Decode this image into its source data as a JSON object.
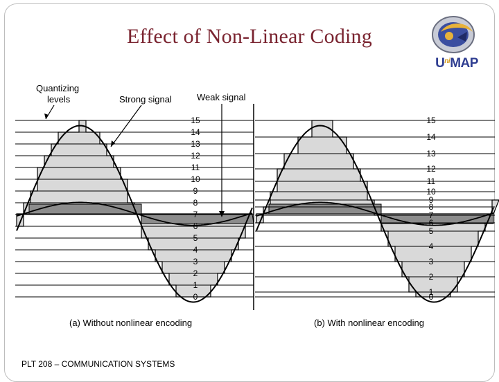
{
  "slide": {
    "title": "Effect of Non-Linear Coding",
    "footer": "PLT 208 – COMMUNICATION SYSTEMS",
    "logo": {
      "icon": "unimap-emblem-icon",
      "text_main": "U",
      "text_sup": "ni",
      "text_rest": "MAP",
      "colors": {
        "primary": "#2f3e91",
        "accent": "#d59b1c"
      }
    }
  },
  "figure": {
    "labels": {
      "quantizing_line1": "Quantizing",
      "quantizing_line2": "levels",
      "strong_signal": "Strong signal",
      "weak_signal": "Weak signal"
    },
    "panel_a": {
      "caption": "(a) Without nonlinear encoding",
      "levels": [
        "15",
        "14",
        "13",
        "12",
        "11",
        "10",
        "9",
        "8",
        "7",
        "6",
        "5",
        "4",
        "3",
        "2",
        "1",
        "0"
      ]
    },
    "panel_b": {
      "caption": "(b) With nonlinear encoding",
      "levels": [
        "15",
        "14",
        "13",
        "12",
        "11",
        "10",
        "9",
        "8",
        "7",
        "6",
        "5",
        "4",
        "3",
        "2",
        "1",
        "0"
      ]
    },
    "colors": {
      "strong_fill": "#d9d9d9",
      "weak_fill": "#8c8c8c",
      "line": "#000000"
    }
  }
}
